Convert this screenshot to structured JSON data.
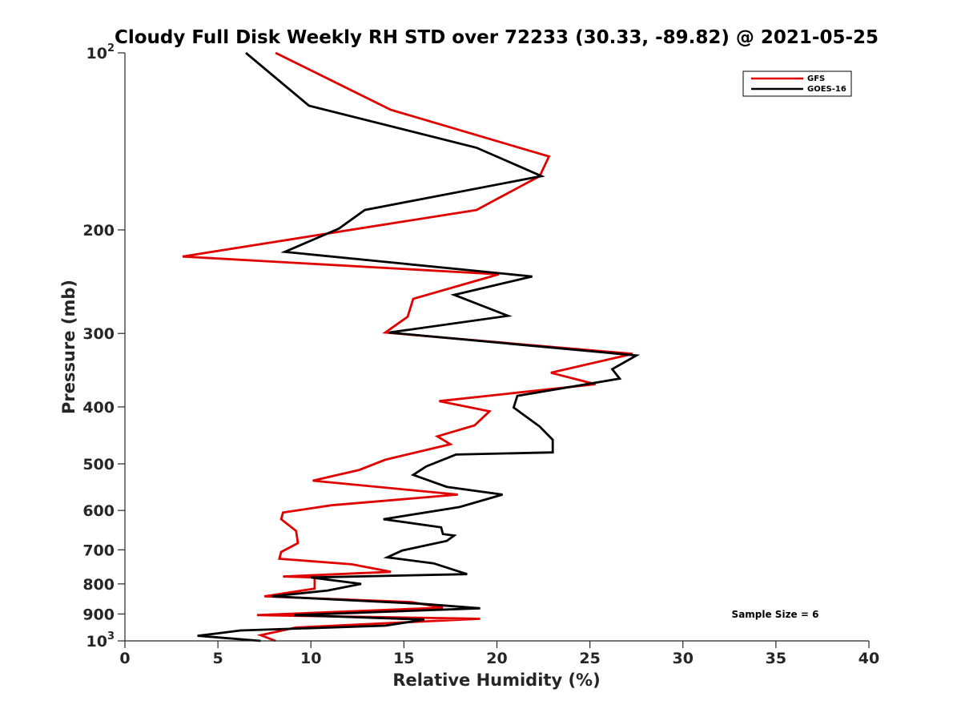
{
  "chart_data": {
    "type": "line",
    "title": "Cloudy Full Disk Weekly RH STD over 72233 (30.33, -89.82) @ 2021-05-25",
    "xlabel": "Relative Humidity (%)",
    "ylabel": "Pressure (mb)",
    "xlim": [
      0,
      40
    ],
    "ylim": [
      100,
      1000
    ],
    "yscale": "log",
    "y_reversed": true,
    "x_ticks": [
      "0",
      "5",
      "10",
      "15",
      "20",
      "25",
      "30",
      "35",
      "40"
    ],
    "y_ticks": [
      {
        "value": 100,
        "base": "10",
        "exp": "2"
      },
      {
        "value": 200,
        "label": "200"
      },
      {
        "value": 300,
        "label": "300"
      },
      {
        "value": 400,
        "label": "400"
      },
      {
        "value": 500,
        "label": "500"
      },
      {
        "value": 600,
        "label": "600"
      },
      {
        "value": 700,
        "label": "700"
      },
      {
        "value": 800,
        "label": "800"
      },
      {
        "value": 900,
        "label": "900"
      },
      {
        "value": 1000,
        "base": "10",
        "exp": "3"
      }
    ],
    "legend_position": "top-right",
    "series": [
      {
        "name": "GFS",
        "color": "#e00000",
        "points": [
          [
            8.1,
            100
          ],
          [
            14.3,
            125
          ],
          [
            22.8,
            150
          ],
          [
            22.3,
            162
          ],
          [
            18.9,
            185
          ],
          [
            3.1,
            222
          ],
          [
            20.1,
            238
          ],
          [
            15.5,
            262
          ],
          [
            15.2,
            281
          ],
          [
            14.0,
            299
          ],
          [
            27.3,
            325
          ],
          [
            22.9,
            350
          ],
          [
            25.3,
            366
          ],
          [
            16.9,
            391
          ],
          [
            19.6,
            407
          ],
          [
            18.8,
            430
          ],
          [
            16.8,
            449
          ],
          [
            17.5,
            463
          ],
          [
            14.0,
            492
          ],
          [
            12.6,
            512
          ],
          [
            10.1,
            534
          ],
          [
            17.9,
            564
          ],
          [
            11.1,
            588
          ],
          [
            8.5,
            605
          ],
          [
            8.4,
            621
          ],
          [
            9.2,
            650
          ],
          [
            9.3,
            682
          ],
          [
            8.4,
            706
          ],
          [
            8.3,
            725
          ],
          [
            12.2,
            741
          ],
          [
            14.3,
            763
          ],
          [
            8.5,
            777
          ],
          [
            10.2,
            780
          ],
          [
            10.2,
            815
          ],
          [
            7.5,
            840
          ],
          [
            15.4,
            859
          ],
          [
            17.1,
            878
          ],
          [
            7.1,
            904
          ],
          [
            19.1,
            917
          ],
          [
            9.2,
            949
          ],
          [
            7.3,
            978
          ],
          [
            8.1,
            1000
          ]
        ]
      },
      {
        "name": "GOES-16",
        "color": "#000000",
        "points": [
          [
            6.5,
            100
          ],
          [
            9.9,
            123
          ],
          [
            18.9,
            145
          ],
          [
            22.4,
            162
          ],
          [
            12.9,
            185
          ],
          [
            11.5,
            199
          ],
          [
            8.6,
            218
          ],
          [
            21.9,
            240
          ],
          [
            17.7,
            258
          ],
          [
            20.6,
            280
          ],
          [
            14.2,
            299
          ],
          [
            27.5,
            327
          ],
          [
            26.2,
            345
          ],
          [
            26.6,
            358
          ],
          [
            21.1,
            383
          ],
          [
            20.9,
            401
          ],
          [
            22.3,
            432
          ],
          [
            23.0,
            455
          ],
          [
            23.0,
            478
          ],
          [
            17.8,
            482
          ],
          [
            16.2,
            505
          ],
          [
            15.5,
            522
          ],
          [
            17.3,
            547
          ],
          [
            20.3,
            564
          ],
          [
            18.0,
            592
          ],
          [
            13.9,
            621
          ],
          [
            17.0,
            641
          ],
          [
            17.1,
            658
          ],
          [
            17.7,
            662
          ],
          [
            17.3,
            676
          ],
          [
            14.9,
            702
          ],
          [
            14.1,
            721
          ],
          [
            16.6,
            738
          ],
          [
            18.4,
            770
          ],
          [
            10.0,
            780
          ],
          [
            12.7,
            800
          ],
          [
            10.9,
            821
          ],
          [
            7.9,
            840
          ],
          [
            16.0,
            865
          ],
          [
            19.1,
            880
          ],
          [
            9.1,
            904
          ],
          [
            16.1,
            920
          ],
          [
            14.0,
            942
          ],
          [
            6.2,
            960
          ],
          [
            4.9,
            972
          ],
          [
            3.9,
            980
          ],
          [
            7.3,
            1000
          ]
        ]
      }
    ],
    "annotation": "Sample Size = 6"
  }
}
